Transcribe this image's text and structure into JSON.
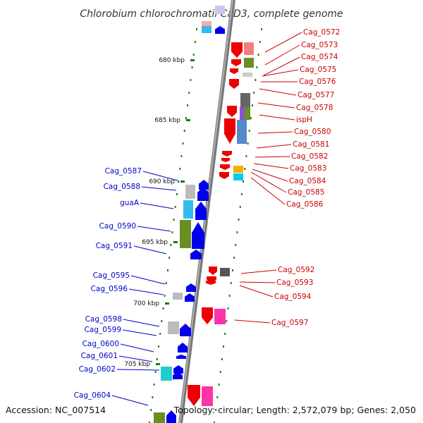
{
  "title": "Chlorobium chlorochromatii CaD3, complete genome",
  "footer": {
    "accession": "Accession: NC_007514",
    "topology": "Topology: circular; Length: 2,572,079 bp; Genes: 2,050"
  },
  "ticks": [
    "680 kbp",
    "685 kbp",
    "690 kbp",
    "695 kbp",
    "700 kbp",
    "705 kbp"
  ],
  "colors": {
    "forward_label": "#cc0000",
    "reverse_label": "#0000cc",
    "leader_forward": "#cc0000",
    "leader_reverse": "#0000cc",
    "backbone": "#888888",
    "tick": "#1a7a1a"
  },
  "forward_labels": [
    "Cag_0572",
    "Cag_0573",
    "Cag_0574",
    "Cag_0575",
    "Cag_0576",
    "Cag_0577",
    "Cag_0578",
    "ispH",
    "Cag_0580",
    "Cag_0581",
    "Cag_0582",
    "Cag_0583",
    "Cag_0584",
    "Cag_0585",
    "Cag_0586",
    "Cag_0592",
    "Cag_0593",
    "Cag_0594",
    "Cag_0597"
  ],
  "reverse_labels": [
    "Cag_0587",
    "Cag_0588",
    "guaA",
    "Cag_0590",
    "Cag_0591",
    "Cag_0595",
    "Cag_0596",
    "Cag_0598",
    "Cag_0599",
    "Cag_0600",
    "Cag_0601",
    "Cag_0602",
    "Cag_0604"
  ]
}
